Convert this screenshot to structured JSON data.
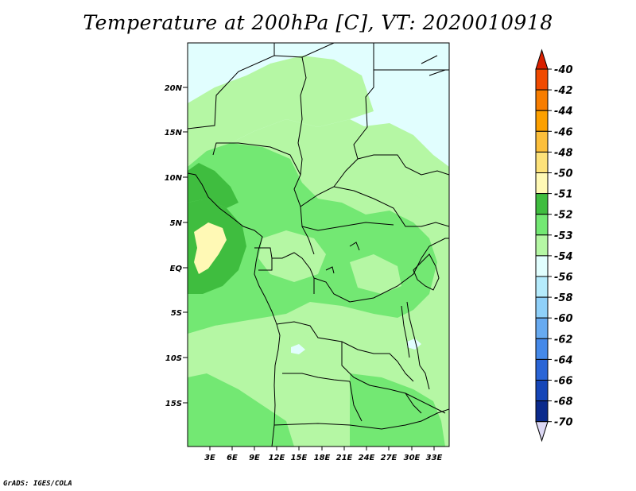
{
  "title": "Temperature at 200hPa [C], VT: 2020010918",
  "credit": "GrADS: IGES/COLA",
  "map": {
    "lat_labels": [
      "20N",
      "15N",
      "10N",
      "5N",
      "EQ",
      "5S",
      "10S",
      "15S"
    ],
    "lon_labels": [
      "3E",
      "6E",
      "9E",
      "12E",
      "15E",
      "18E",
      "21E",
      "24E",
      "27E",
      "30E",
      "33E"
    ]
  },
  "colorbar": {
    "levels": [
      "-40",
      "-42",
      "-44",
      "-46",
      "-48",
      "-50",
      "-51",
      "-52",
      "-53",
      "-54",
      "-56",
      "-58",
      "-60",
      "-62",
      "-64",
      "-66",
      "-68",
      "-70"
    ],
    "colors": [
      "#d92000",
      "#f04a00",
      "#f77d00",
      "#fca000",
      "#fcbf3b",
      "#fde27a",
      "#fff9b5",
      "#3fbd3f",
      "#73e873",
      "#b5f7a4",
      "#e1fefe",
      "#b5ebfc",
      "#8fd0f9",
      "#67aaf0",
      "#4589e9",
      "#2a65d6",
      "#1546b8",
      "#0a2a8c",
      "#04105f"
    ]
  }
}
